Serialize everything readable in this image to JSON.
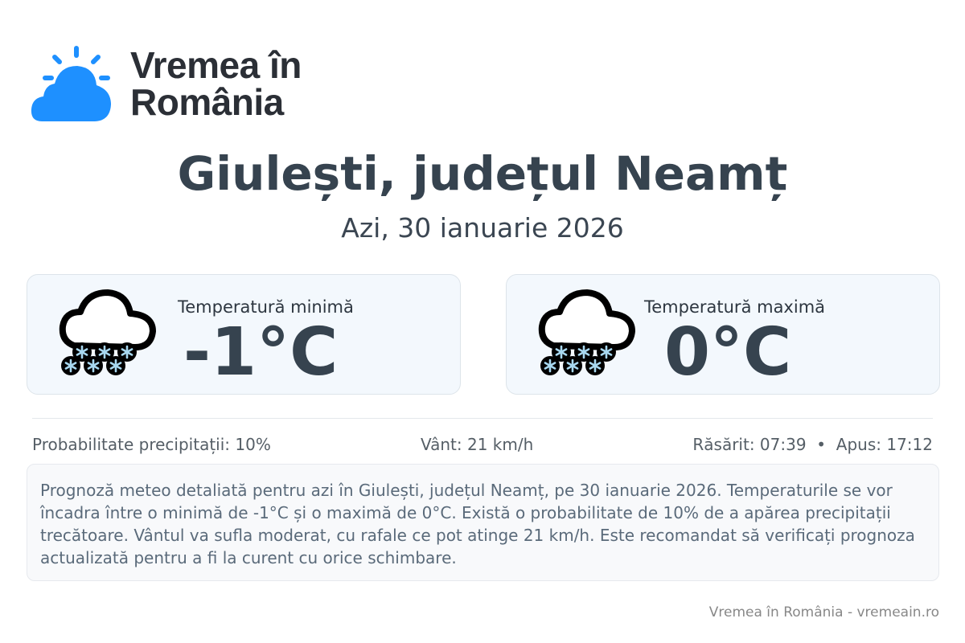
{
  "logo": {
    "line1": "Vremea în",
    "line2": "România",
    "brand_color": "#1e90ff"
  },
  "header": {
    "title": "Giulești, județul Neamț",
    "date": "Azi, 30 ianuarie 2026"
  },
  "cards": [
    {
      "label": "Temperatură minimă",
      "value": "-1°C",
      "icon": "snow-cloud-icon"
    },
    {
      "label": "Temperatură maximă",
      "value": "0°C",
      "icon": "snow-cloud-icon"
    }
  ],
  "stats": {
    "precip": "Probabilitate precipitații: 10%",
    "wind": "Vânt: 21 km/h",
    "sun": "Răsărit: 07:39  •  Apus: 17:12"
  },
  "description": "Prognoză meteo detaliată pentru azi în Giulești, județul Neamț, pe 30 ianuarie 2026. Temperaturile se vor încadra între o minimă de -1°C și o maximă de 0°C. Există o probabilitate de 10% de a apărea precipitații trecătoare. Vântul va sufla moderat, cu rafale ce pot atinge 21 km/h. Este recomandat să verificați prognoza actualizată pentru a fi la curent cu orice schimbare.",
  "footer": "Vremea în România - vremeain.ro"
}
